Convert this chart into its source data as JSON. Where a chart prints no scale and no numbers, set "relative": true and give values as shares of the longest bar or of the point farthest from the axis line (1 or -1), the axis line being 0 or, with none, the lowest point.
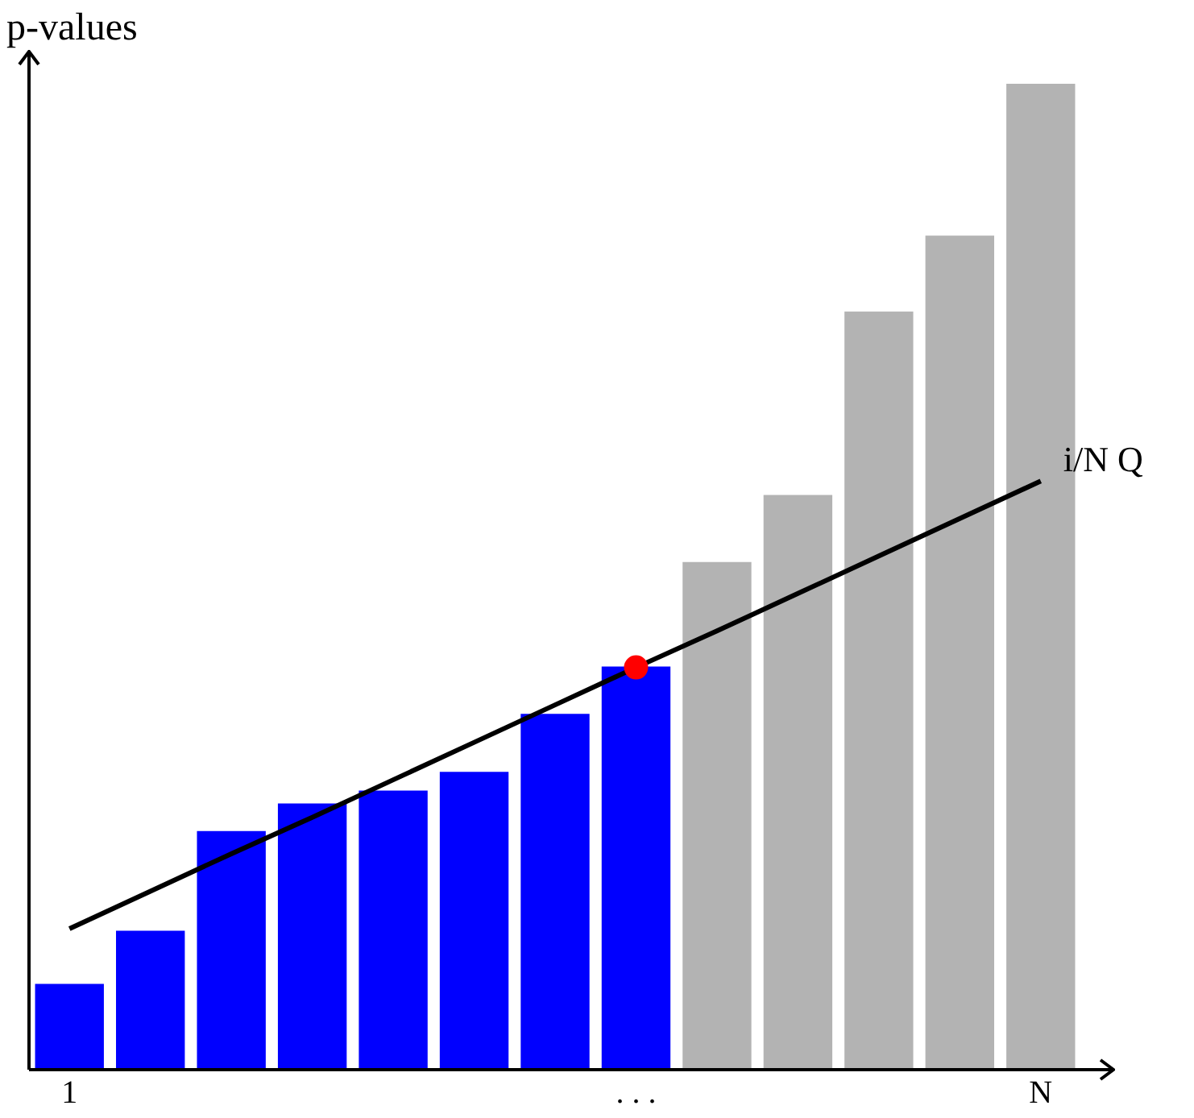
{
  "chart_data": {
    "type": "bar",
    "relative": true,
    "ylabel": "p-values",
    "legend": false,
    "grid": false,
    "categories": [
      "1",
      null,
      null,
      null,
      null,
      null,
      null,
      ". . .",
      null,
      null,
      null,
      null,
      "N"
    ],
    "series": [
      {
        "values": [
          0.087,
          0.141,
          0.242,
          0.27,
          0.283,
          0.302,
          0.361,
          0.409,
          0.515,
          0.583,
          0.769,
          0.846,
          1
        ],
        "colors": [
          "#0000ff",
          "#0000ff",
          "#0000ff",
          "#0000ff",
          "#0000ff",
          "#0000ff",
          "#0000ff",
          "#0000ff",
          "#b3b3b3",
          "#b3b3b3",
          "#b3b3b3",
          "#b3b3b3",
          "#b3b3b3"
        ]
      },
      {
        "type": "line",
        "name": "i/N Q",
        "color": "#000000",
        "values": [
          0.143,
          0.181,
          0.219,
          0.256,
          0.294,
          0.332,
          0.37,
          0.408,
          0.445,
          0.483,
          0.521,
          0.559,
          0.597
        ]
      },
      {
        "type": "scatter",
        "color": "#ff0000",
        "values": [
          null,
          null,
          null,
          null,
          null,
          null,
          null,
          0.408,
          null,
          null,
          null,
          null,
          null
        ]
      }
    ]
  }
}
